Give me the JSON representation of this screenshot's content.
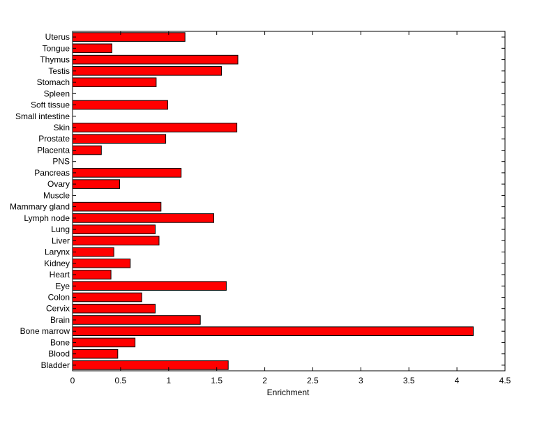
{
  "chart_data": {
    "type": "bar",
    "orientation": "horizontal",
    "title": "",
    "xlabel": "Enrichment",
    "ylabel": "",
    "xlim": [
      0,
      4.5
    ],
    "xticks": [
      "0",
      "0.5",
      "1",
      "1.5",
      "2",
      "2.5",
      "3",
      "3.5",
      "4",
      "4.5"
    ],
    "grid": false,
    "legend": "none",
    "bar_color": "#ff0000",
    "bar_edge_color": "#000000",
    "categories": [
      "Uterus",
      "Tongue",
      "Thymus",
      "Testis",
      "Stomach",
      "Spleen",
      "Soft tissue",
      "Small intestine",
      "Skin",
      "Prostate",
      "Placenta",
      "PNS",
      "Pancreas",
      "Ovary",
      "Muscle",
      "Mammary gland",
      "Lymph node",
      "Lung",
      "Liver",
      "Larynx",
      "Kidney",
      "Heart",
      "Eye",
      "Colon",
      "Cervix",
      "Brain",
      "Bone marrow",
      "Bone",
      "Blood",
      "Bladder"
    ],
    "values": [
      1.17,
      0.41,
      1.72,
      1.55,
      0.87,
      0,
      0.99,
      0,
      1.71,
      0.97,
      0.3,
      0,
      1.13,
      0.49,
      0,
      0.92,
      1.47,
      0.86,
      0.9,
      0.43,
      0.6,
      0.4,
      1.6,
      0.72,
      0.86,
      1.33,
      4.17,
      0.65,
      0.47,
      1.62
    ]
  }
}
